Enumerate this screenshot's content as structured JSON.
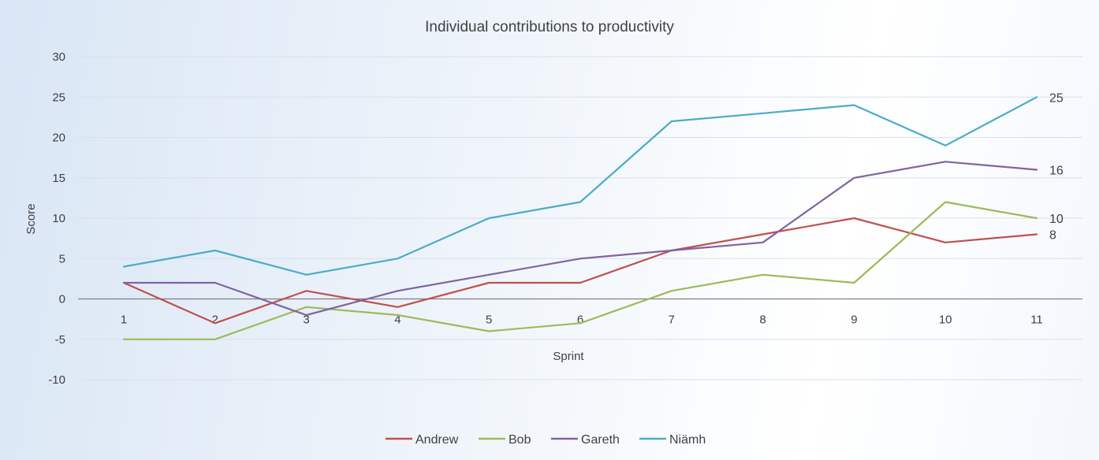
{
  "chart_data": {
    "type": "line",
    "title": "Individual contributions to productivity",
    "xlabel": "Sprint",
    "ylabel": "Score",
    "categories": [
      "1",
      "2",
      "3",
      "4",
      "5",
      "6",
      "7",
      "8",
      "9",
      "10",
      "11"
    ],
    "ylim": [
      -10,
      30
    ],
    "yticks": [
      -10,
      -5,
      0,
      5,
      10,
      15,
      20,
      25,
      30
    ],
    "grid": true,
    "legend_position": "bottom",
    "series": [
      {
        "name": "Andrew",
        "color": "#c0504d",
        "values": [
          2,
          -3,
          1,
          -1,
          2,
          2,
          6,
          8,
          10,
          7,
          8
        ],
        "end_label": "8"
      },
      {
        "name": "Bob",
        "color": "#9bbb59",
        "values": [
          -5,
          -5,
          -1,
          -2,
          -4,
          -3,
          1,
          3,
          2,
          12,
          10
        ],
        "end_label": "10"
      },
      {
        "name": "Gareth",
        "color": "#8064a2",
        "values": [
          2,
          2,
          -2,
          1,
          3,
          5,
          6,
          7,
          15,
          17,
          16
        ],
        "end_label": "16"
      },
      {
        "name": "Niämh",
        "color": "#4bacc6",
        "values": [
          4,
          6,
          3,
          5,
          10,
          12,
          22,
          23,
          24,
          19,
          25
        ],
        "end_label": "25"
      }
    ]
  }
}
